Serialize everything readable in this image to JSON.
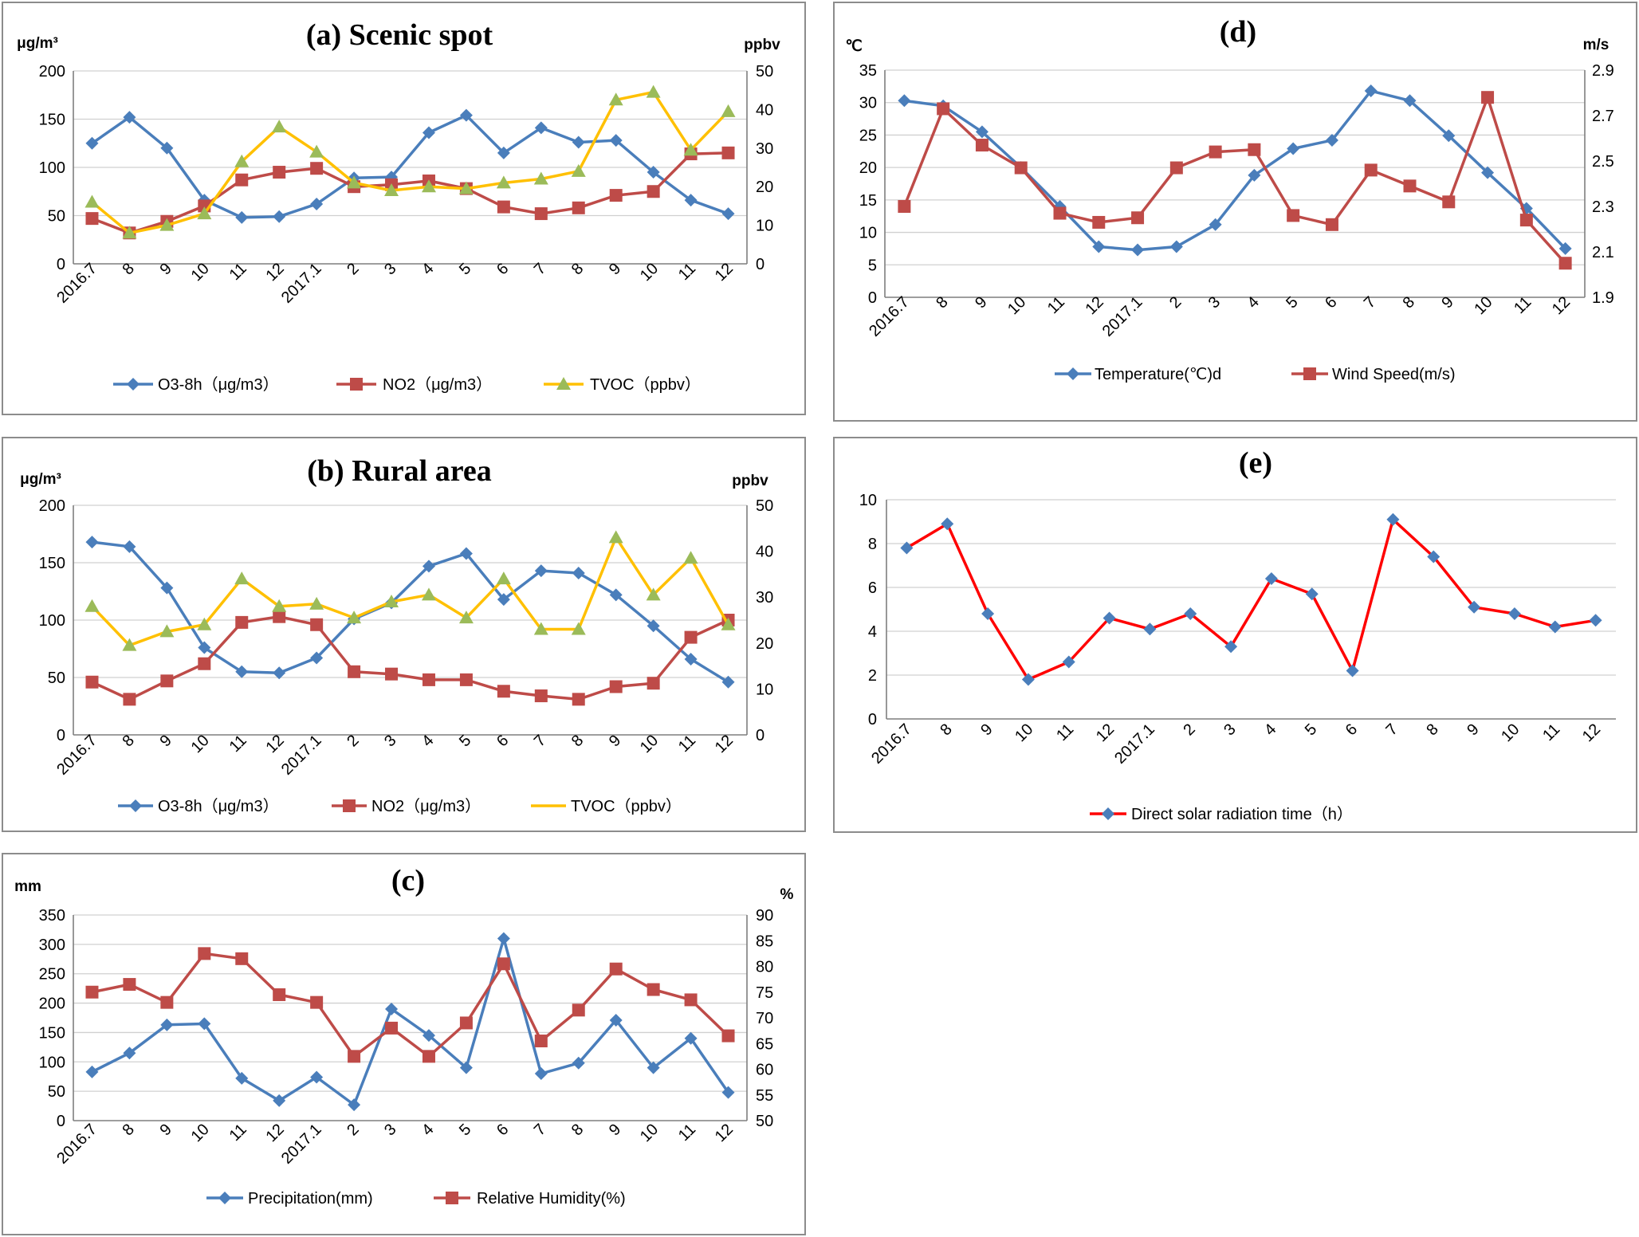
{
  "colors": {
    "o3": "#4a7ebb",
    "no2": "#be4b48",
    "tvoc": "#ffc000",
    "tvoc_marker": "#9bbb59",
    "radiation": "#ff0000",
    "radiation_marker": "#4a7ebb"
  },
  "chart_data": [
    {
      "id": "a",
      "type": "line",
      "title": "(a) Scenic spot",
      "left_unit": "μg/m³",
      "right_unit": "ppbv",
      "categories": [
        "2016.7",
        "8",
        "9",
        "10",
        "11",
        "12",
        "2017.1",
        "2",
        "3",
        "4",
        "5",
        "6",
        "7",
        "8",
        "9",
        "10",
        "11",
        "12"
      ],
      "left_axis": {
        "min": 0,
        "max": 200,
        "step": 50,
        "ticks": [
          "0",
          "50",
          "100",
          "150",
          "200"
        ]
      },
      "right_axis": {
        "min": 0,
        "max": 50,
        "step": 10,
        "ticks": [
          "0",
          "10",
          "20",
          "30",
          "40",
          "50"
        ]
      },
      "series": [
        {
          "name": "O3-8h（μg/m3）",
          "axis": "left",
          "color_key": "o3",
          "marker": "diamond",
          "values": [
            125,
            152,
            120,
            66,
            48,
            49,
            62,
            89,
            90,
            136,
            154,
            115,
            141,
            126,
            128,
            95,
            66,
            52
          ]
        },
        {
          "name": "NO2（μg/m3）",
          "axis": "left",
          "color_key": "no2",
          "marker": "square",
          "values": [
            47,
            32,
            44,
            60,
            87,
            95,
            99,
            80,
            82,
            86,
            78,
            59,
            52,
            58,
            71,
            75,
            114,
            115
          ]
        },
        {
          "name": "TVOC（ppbv）",
          "axis": "right",
          "color_key": "tvoc",
          "marker": "triangle",
          "marker_color_key": "tvoc_marker",
          "values": [
            16,
            8,
            10,
            13,
            26.5,
            35.5,
            29,
            21,
            19,
            20,
            19.5,
            21,
            22,
            24,
            42.5,
            44.5,
            29.5,
            39.5
          ]
        }
      ]
    },
    {
      "id": "b",
      "type": "line",
      "title": "(b) Rural area",
      "left_unit": "μg/m³",
      "right_unit": "ppbv",
      "categories": [
        "2016.7",
        "8",
        "9",
        "10",
        "11",
        "12",
        "2017.1",
        "2",
        "3",
        "4",
        "5",
        "6",
        "7",
        "8",
        "9",
        "10",
        "11",
        "12"
      ],
      "left_axis": {
        "min": 0,
        "max": 200,
        "step": 50,
        "ticks": [
          "0",
          "50",
          "100",
          "150",
          "200"
        ]
      },
      "right_axis": {
        "min": 0,
        "max": 50,
        "step": 10,
        "ticks": [
          "0",
          "10",
          "20",
          "30",
          "40",
          "50"
        ]
      },
      "series": [
        {
          "name": "O3-8h（μg/m3）",
          "axis": "left",
          "color_key": "o3",
          "marker": "diamond",
          "values": [
            168,
            164,
            128,
            76,
            55,
            54,
            67,
            101,
            115,
            147,
            158,
            118,
            143,
            141,
            122,
            95,
            66,
            46
          ]
        },
        {
          "name": "NO2（μg/m3）",
          "axis": "left",
          "color_key": "no2",
          "marker": "square",
          "values": [
            46,
            31,
            47,
            62,
            98,
            103,
            96,
            55,
            53,
            48,
            48,
            38,
            34,
            31,
            42,
            45,
            85,
            100
          ]
        },
        {
          "name": "TVOC（ppbv）",
          "axis": "right",
          "color_key": "tvoc",
          "marker": "triangle",
          "marker_color_key": "tvoc_marker",
          "values": [
            28,
            19.5,
            22.5,
            24,
            34,
            28,
            28.5,
            25.5,
            29,
            30.5,
            25.5,
            34,
            23,
            23,
            43,
            30.5,
            38.5,
            24
          ]
        }
      ]
    },
    {
      "id": "c",
      "type": "line",
      "title": "(c)",
      "left_unit": "mm",
      "right_unit": "%",
      "categories": [
        "2016.7",
        "8",
        "9",
        "10",
        "11",
        "12",
        "2017.1",
        "2",
        "3",
        "4",
        "5",
        "6",
        "7",
        "8",
        "9",
        "10",
        "11",
        "12"
      ],
      "left_axis": {
        "min": 0,
        "max": 350,
        "step": 50,
        "ticks": [
          "0",
          "50",
          "100",
          "150",
          "200",
          "250",
          "300",
          "350"
        ]
      },
      "right_axis": {
        "min": 50,
        "max": 90,
        "step": 5,
        "ticks": [
          "50",
          "55",
          "60",
          "65",
          "70",
          "75",
          "80",
          "85",
          "90"
        ]
      },
      "series": [
        {
          "name": "Precipitation(mm)",
          "axis": "left",
          "color_key": "o3",
          "marker": "diamond",
          "values": [
            83,
            115,
            163,
            165,
            72,
            34,
            74,
            27,
            190,
            145,
            90,
            310,
            80,
            98,
            171,
            90,
            140,
            48
          ]
        },
        {
          "name": "Relative Humidity(%)",
          "axis": "right",
          "color_key": "no2",
          "marker": "square",
          "values": [
            75,
            76.5,
            73,
            82.5,
            81.5,
            74.5,
            73,
            62.5,
            68,
            62.5,
            69,
            80.5,
            65.5,
            71.5,
            79.5,
            75.5,
            73.5,
            66.5
          ]
        }
      ]
    },
    {
      "id": "d",
      "type": "line",
      "title": "(d)",
      "left_unit": "℃",
      "right_unit": "m/s",
      "categories": [
        "2016.7",
        "8",
        "9",
        "10",
        "11",
        "12",
        "2017.1",
        "2",
        "3",
        "4",
        "5",
        "6",
        "7",
        "8",
        "9",
        "10",
        "11",
        "12"
      ],
      "left_axis": {
        "min": 0,
        "max": 35,
        "step": 5,
        "ticks": [
          "0",
          "5",
          "10",
          "15",
          "20",
          "25",
          "30",
          "35"
        ]
      },
      "right_axis": {
        "min": 1.9,
        "max": 2.9,
        "step": 0.2,
        "ticks": [
          "1.9",
          "2.1",
          "2.3",
          "2.5",
          "2.7",
          "2.9"
        ]
      },
      "series": [
        {
          "name": "Temperature(℃)d",
          "axis": "left",
          "color_key": "o3",
          "marker": "diamond",
          "values": [
            30.3,
            29.5,
            25.5,
            20,
            14,
            7.8,
            7.3,
            7.8,
            11.2,
            18.8,
            22.9,
            24.2,
            31.8,
            30.3,
            24.9,
            19.2,
            13.7,
            7.5
          ]
        },
        {
          "name": "Wind Speed(m/s)",
          "axis": "right",
          "color_key": "no2",
          "marker": "square",
          "values": [
            2.3,
            2.73,
            2.57,
            2.47,
            2.27,
            2.23,
            2.25,
            2.47,
            2.54,
            2.55,
            2.26,
            2.22,
            2.46,
            2.39,
            2.32,
            2.78,
            2.24,
            2.05
          ]
        }
      ]
    },
    {
      "id": "e",
      "type": "line",
      "title": "(e)",
      "left_unit": "",
      "right_unit": "",
      "categories": [
        "2016.7",
        "8",
        "9",
        "10",
        "11",
        "12",
        "2017.1",
        "2",
        "3",
        "4",
        "5",
        "6",
        "7",
        "8",
        "9",
        "10",
        "11",
        "12"
      ],
      "left_axis": {
        "min": 0,
        "max": 10,
        "step": 2,
        "ticks": [
          "0",
          "2",
          "4",
          "6",
          "8",
          "10"
        ]
      },
      "series": [
        {
          "name": "Direct solar radiation time（h）",
          "axis": "left",
          "color_key": "radiation",
          "marker": "diamond",
          "marker_color_key": "radiation_marker",
          "values": [
            7.8,
            8.9,
            4.8,
            1.8,
            2.6,
            4.6,
            4.1,
            4.8,
            3.3,
            6.4,
            5.7,
            2.2,
            9.1,
            7.4,
            5.1,
            4.8,
            4.2,
            4.5
          ]
        }
      ]
    }
  ]
}
